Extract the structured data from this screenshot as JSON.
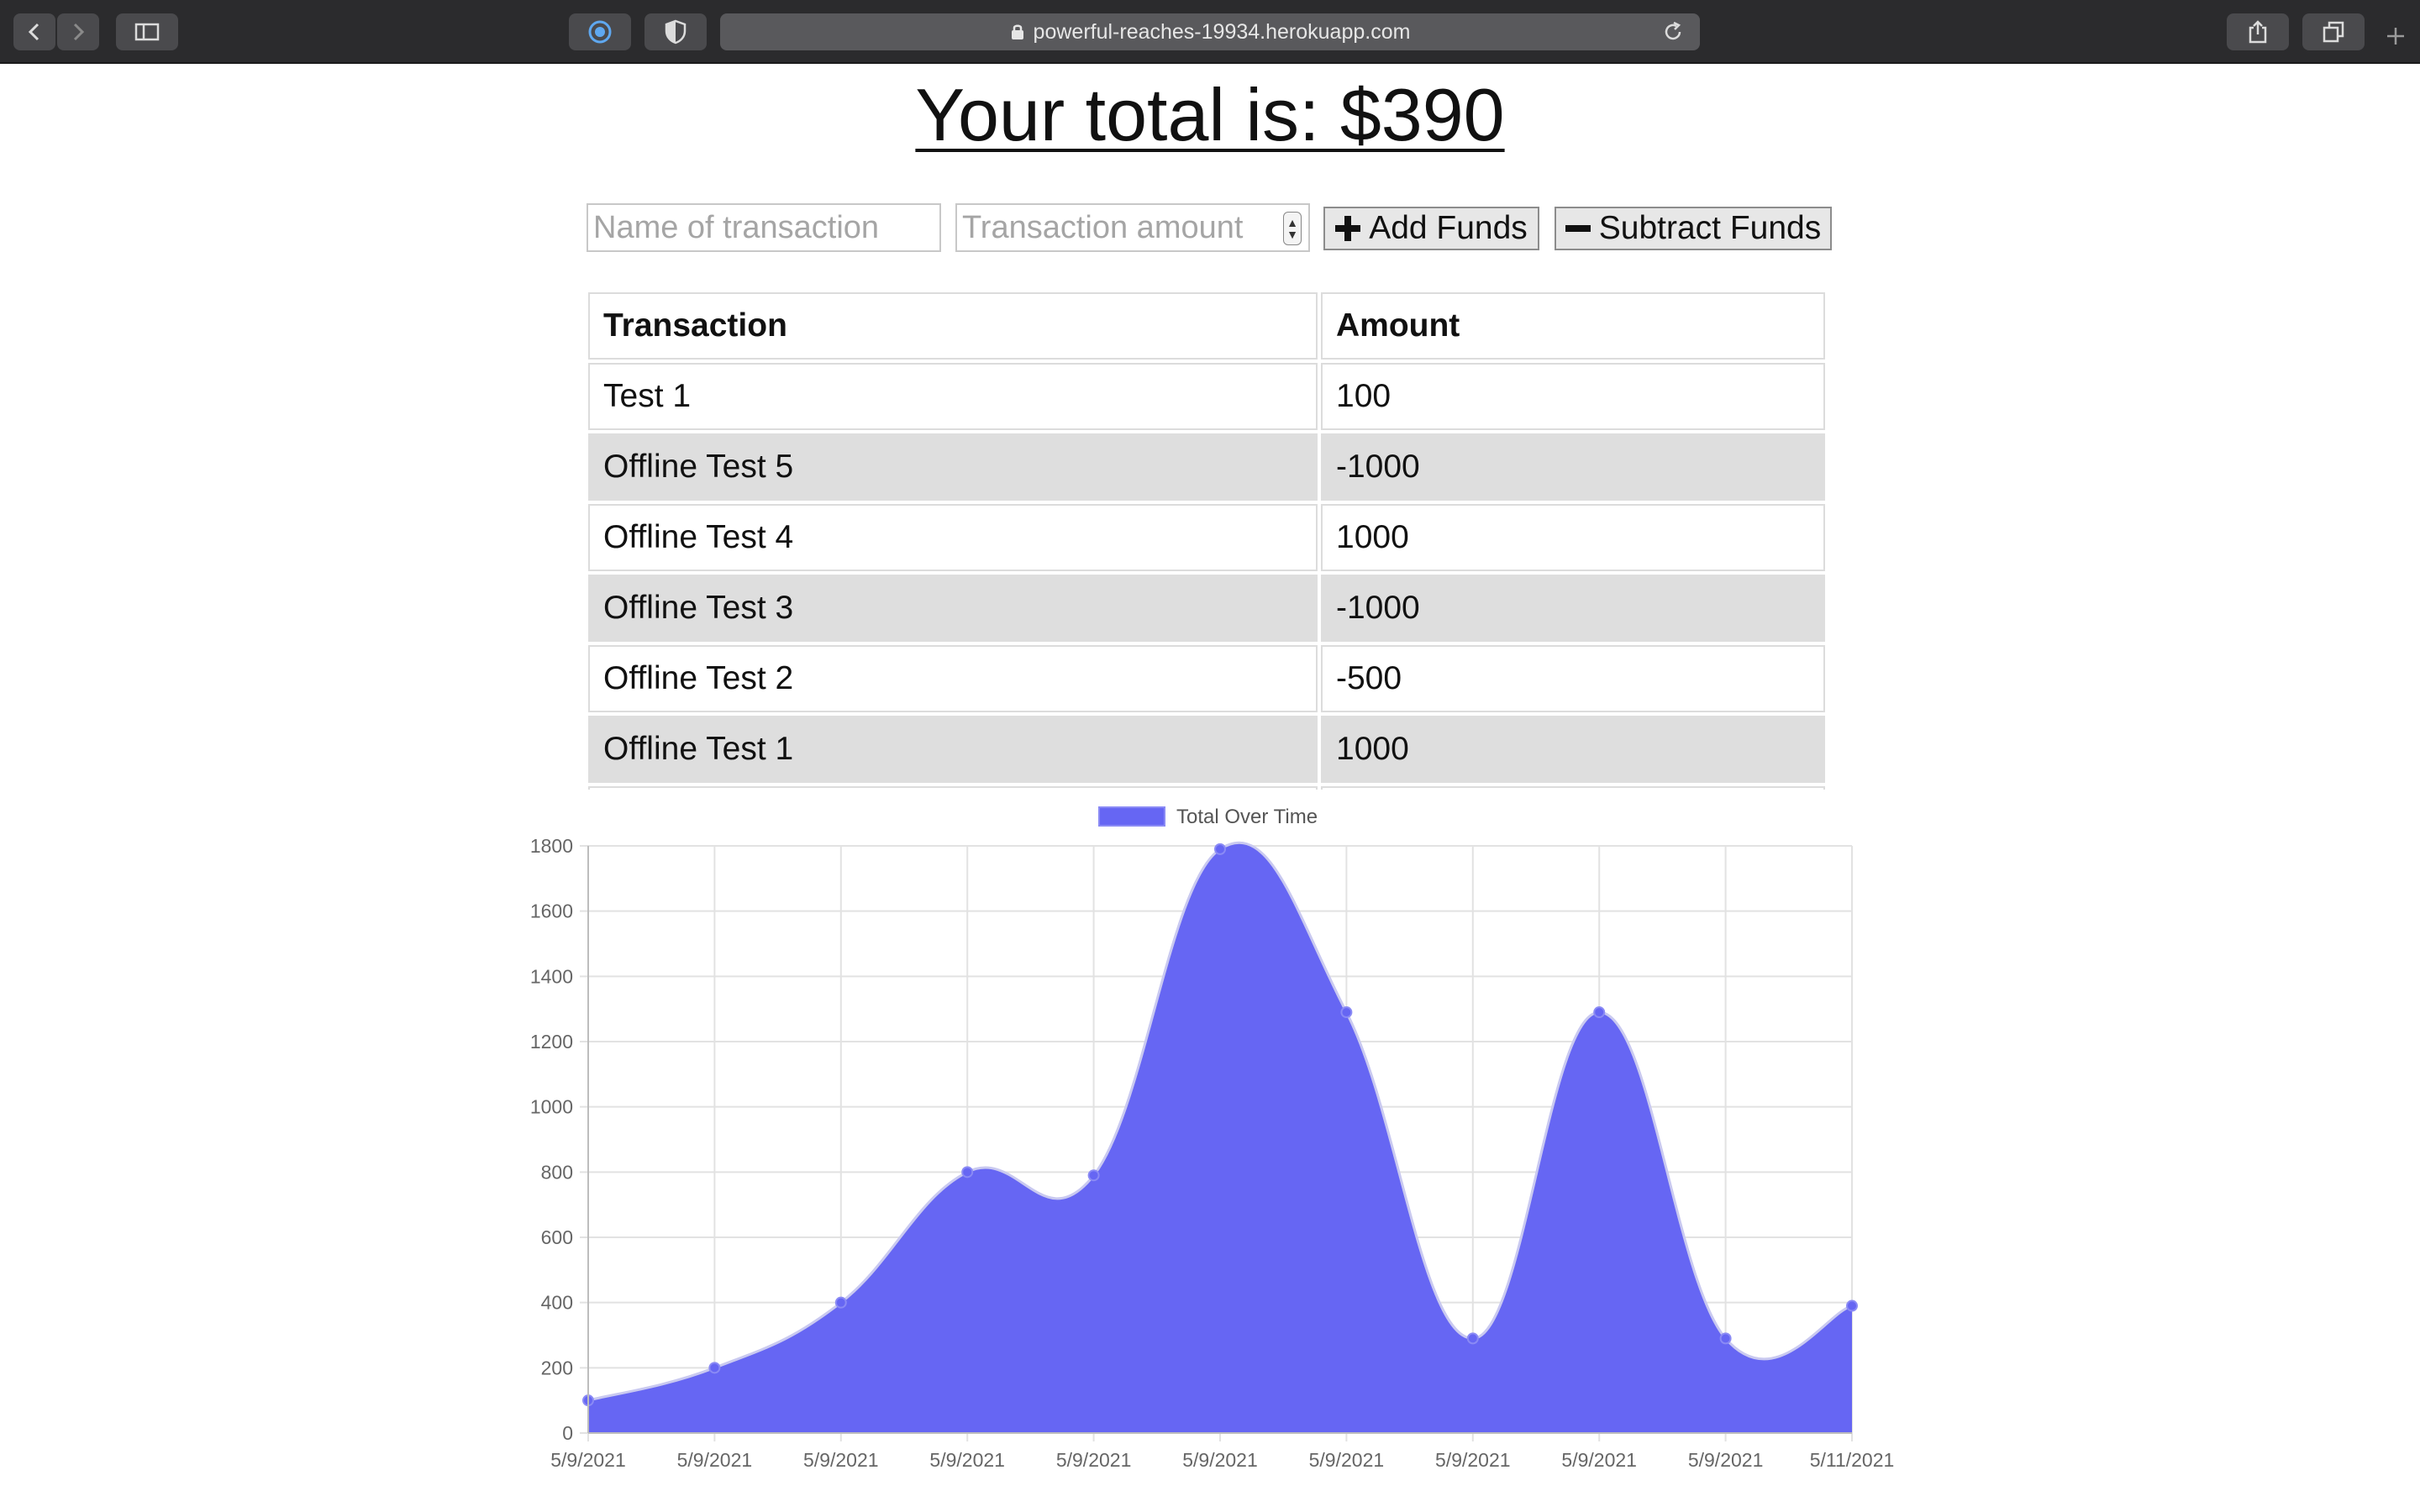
{
  "browser": {
    "url": "powerful-reaches-19934.herokuapp.com"
  },
  "page": {
    "title": "Your total is: $390"
  },
  "form": {
    "name_placeholder": "Name of transaction",
    "amount_placeholder": "Transaction amount",
    "add_label": "Add Funds",
    "subtract_label": "Subtract Funds"
  },
  "table": {
    "headers": [
      "Transaction",
      "Amount"
    ],
    "rows": [
      {
        "name": "Test 1",
        "amount": "100"
      },
      {
        "name": "Offline Test 5",
        "amount": "-1000"
      },
      {
        "name": "Offline Test 4",
        "amount": "1000"
      },
      {
        "name": "Offline Test 3",
        "amount": "-1000"
      },
      {
        "name": "Offline Test 2",
        "amount": "-500"
      },
      {
        "name": "Offline Test 1",
        "amount": "1000"
      },
      {
        "name": "",
        "amount": ""
      }
    ]
  },
  "chart_data": {
    "type": "area",
    "legend": "Total Over Time",
    "legend_position": "top",
    "fill_color": "#6666f3",
    "grid": true,
    "ylim": [
      0,
      1800
    ],
    "y_ticks": [
      0,
      200,
      400,
      600,
      800,
      1000,
      1200,
      1400,
      1600,
      1800
    ],
    "x": [
      "5/9/2021",
      "5/9/2021",
      "5/9/2021",
      "5/9/2021",
      "5/9/2021",
      "5/9/2021",
      "5/9/2021",
      "5/9/2021",
      "5/9/2021",
      "5/9/2021",
      "5/11/2021"
    ],
    "series": [
      {
        "name": "Total Over Time",
        "values": [
          100,
          200,
          400,
          800,
          790,
          1790,
          1290,
          290,
          1290,
          290,
          390
        ]
      }
    ]
  }
}
